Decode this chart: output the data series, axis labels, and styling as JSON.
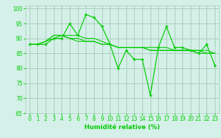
{
  "x": [
    0,
    1,
    2,
    3,
    4,
    5,
    6,
    7,
    8,
    9,
    10,
    11,
    12,
    13,
    14,
    15,
    16,
    17,
    18,
    19,
    20,
    21,
    22,
    23
  ],
  "line1": [
    88,
    88,
    88,
    90,
    90,
    95,
    91,
    98,
    97,
    94,
    88,
    80,
    86,
    83,
    83,
    71,
    87,
    94,
    87,
    87,
    86,
    85,
    88,
    81
  ],
  "line2": [
    88,
    88,
    89,
    90,
    91,
    91,
    91,
    90,
    90,
    89,
    88,
    87,
    87,
    87,
    87,
    86,
    86,
    86,
    86,
    86,
    86,
    85,
    85,
    85
  ],
  "line3": [
    88,
    88,
    89,
    91,
    91,
    90,
    90,
    89,
    89,
    88,
    88,
    87,
    87,
    87,
    87,
    87,
    87,
    87,
    86,
    86,
    86,
    86,
    86,
    85
  ],
  "line4": [
    88,
    88,
    89,
    91,
    91,
    90,
    89,
    89,
    89,
    88,
    88,
    87,
    87,
    87,
    87,
    86,
    86,
    86,
    86,
    86,
    86,
    86,
    85,
    85
  ],
  "line_color": "#00cc00",
  "bg_color": "#d4f0e8",
  "grid_color": "#aaccbb",
  "xlabel": "Humidité relative (%)",
  "ylim": [
    65,
    101
  ],
  "xlim": [
    -0.5,
    23.5
  ],
  "yticks": [
    65,
    70,
    75,
    80,
    85,
    90,
    95,
    100
  ],
  "xticks": [
    0,
    1,
    2,
    3,
    4,
    5,
    6,
    7,
    8,
    9,
    10,
    11,
    12,
    13,
    14,
    15,
    16,
    17,
    18,
    19,
    20,
    21,
    22,
    23
  ]
}
